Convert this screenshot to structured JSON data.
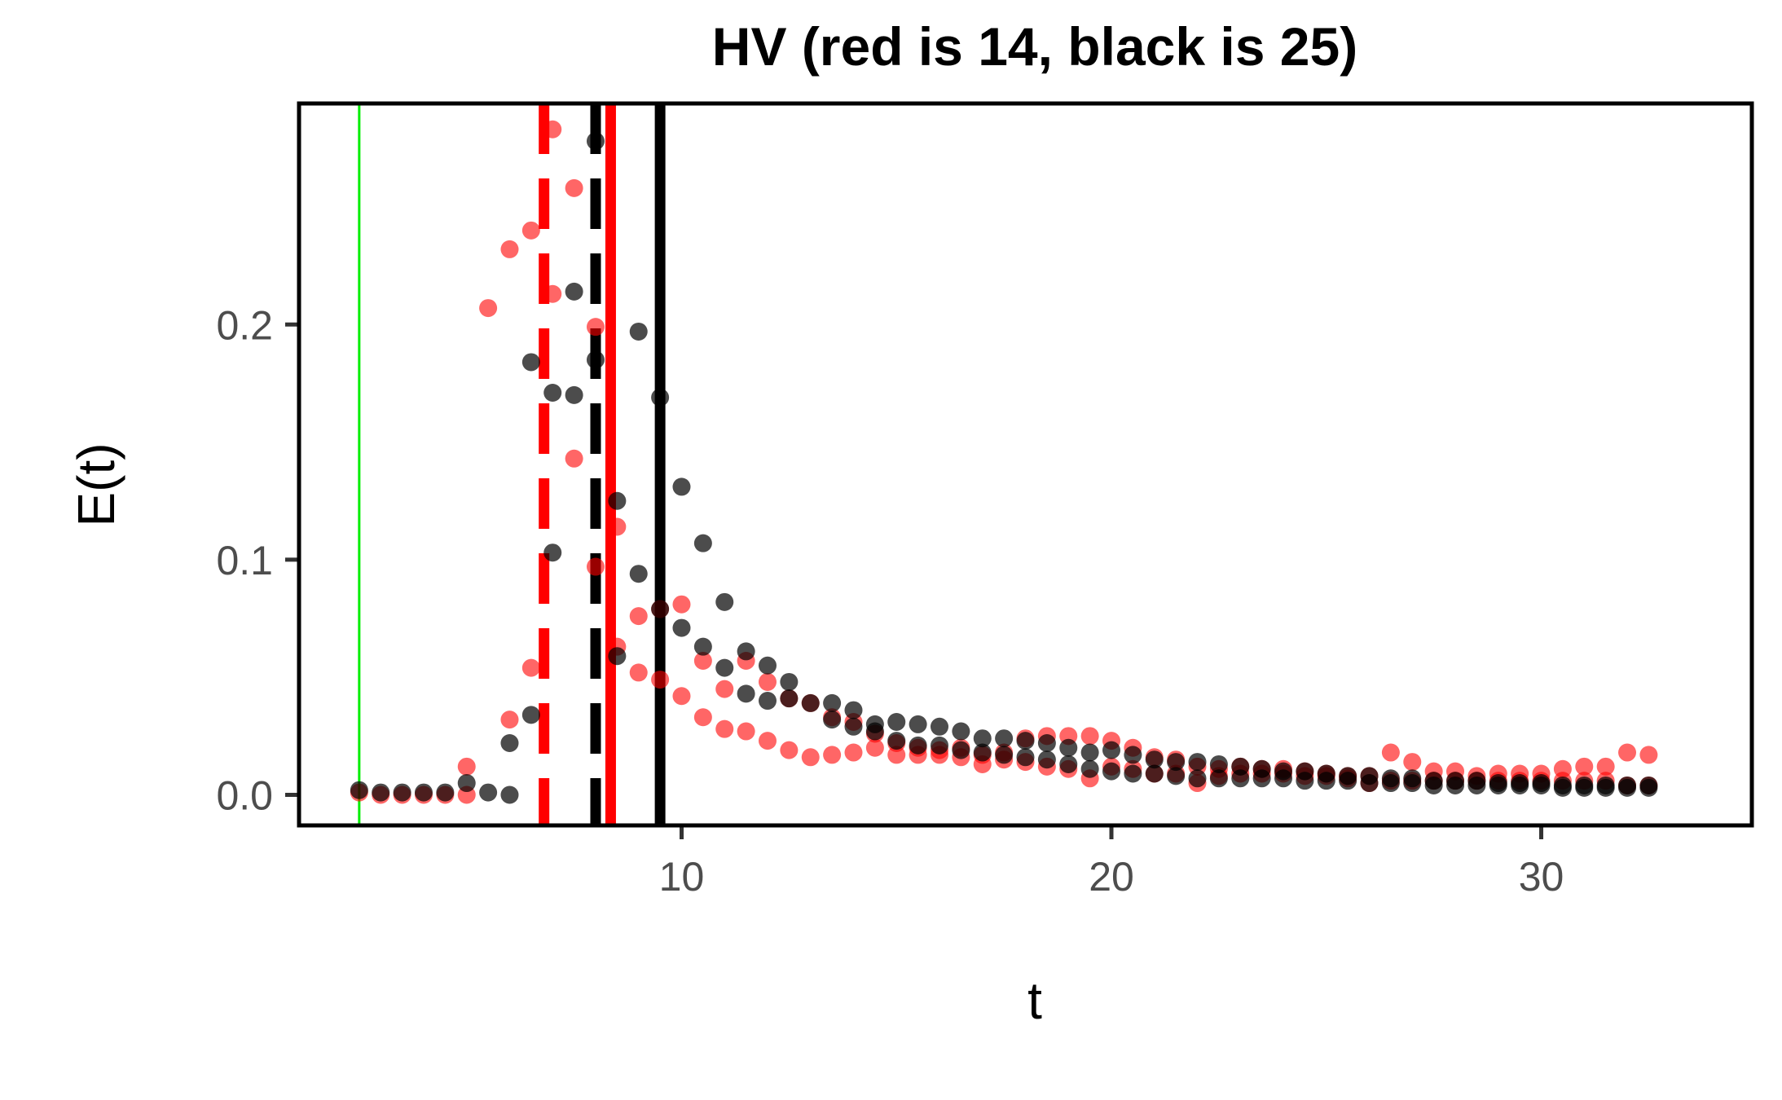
{
  "chart_data": {
    "type": "scatter",
    "title": "HV (red is 14, black is 25)",
    "xlabel": "t",
    "ylabel": "E(t)",
    "xlim": [
      1.1,
      34.9
    ],
    "ylim": [
      -0.013,
      0.294
    ],
    "xticks": [
      10,
      20,
      30
    ],
    "yticks": [
      0.0,
      0.1,
      0.2
    ],
    "ytick_labels": [
      "0.0",
      "0.1",
      "0.2"
    ],
    "grid": false,
    "legend": "none",
    "colors": {
      "red": "#ff0000",
      "black": "#000000",
      "green": "#00ee00"
    },
    "vlines": [
      {
        "x": 2.5,
        "color": "#00ee00",
        "style": "solid",
        "width": "thin"
      },
      {
        "x": 6.8,
        "color": "#ff0000",
        "style": "dashed"
      },
      {
        "x": 8.0,
        "color": "#000000",
        "style": "dashed"
      },
      {
        "x": 8.35,
        "color": "#ff0000",
        "style": "solid"
      },
      {
        "x": 9.5,
        "color": "#000000",
        "style": "solid"
      }
    ],
    "series": [
      {
        "color": "#ff0000",
        "opacity": 0.6,
        "points": [
          [
            2.5,
            0.001
          ],
          [
            3.0,
            0.0
          ],
          [
            3.5,
            0.0
          ],
          [
            4.0,
            0.0
          ],
          [
            4.5,
            0.0
          ],
          [
            5.0,
            0.0
          ],
          [
            5.0,
            0.012
          ],
          [
            5.5,
            0.207
          ],
          [
            6.0,
            0.032
          ],
          [
            6.0,
            0.232
          ],
          [
            6.5,
            0.24
          ],
          [
            6.5,
            0.054
          ],
          [
            7.0,
            0.283
          ],
          [
            7.0,
            0.213
          ],
          [
            7.5,
            0.258
          ],
          [
            7.5,
            0.143
          ],
          [
            8.0,
            0.199
          ],
          [
            8.0,
            0.097
          ],
          [
            8.5,
            0.114
          ],
          [
            8.5,
            0.063
          ],
          [
            9.0,
            0.076
          ],
          [
            9.0,
            0.052
          ],
          [
            9.5,
            0.079
          ],
          [
            9.5,
            0.049
          ],
          [
            10.0,
            0.081
          ],
          [
            10.0,
            0.042
          ],
          [
            10.5,
            0.057
          ],
          [
            10.5,
            0.033
          ],
          [
            11.0,
            0.045
          ],
          [
            11.0,
            0.028
          ],
          [
            11.5,
            0.057
          ],
          [
            11.5,
            0.027
          ],
          [
            12.0,
            0.048
          ],
          [
            12.0,
            0.023
          ],
          [
            12.5,
            0.041
          ],
          [
            12.5,
            0.019
          ],
          [
            13.0,
            0.039
          ],
          [
            13.0,
            0.016
          ],
          [
            13.5,
            0.033
          ],
          [
            13.5,
            0.017
          ],
          [
            14.0,
            0.031
          ],
          [
            14.0,
            0.018
          ],
          [
            14.5,
            0.026
          ],
          [
            14.5,
            0.02
          ],
          [
            15.0,
            0.022
          ],
          [
            15.0,
            0.017
          ],
          [
            15.5,
            0.02
          ],
          [
            15.5,
            0.017
          ],
          [
            16.0,
            0.019
          ],
          [
            16.0,
            0.017
          ],
          [
            16.5,
            0.02
          ],
          [
            16.5,
            0.016
          ],
          [
            17.0,
            0.017
          ],
          [
            17.0,
            0.013
          ],
          [
            17.5,
            0.018
          ],
          [
            17.5,
            0.015
          ],
          [
            18.0,
            0.024
          ],
          [
            18.0,
            0.014
          ],
          [
            18.5,
            0.025
          ],
          [
            18.5,
            0.012
          ],
          [
            19.0,
            0.025
          ],
          [
            19.0,
            0.011
          ],
          [
            19.5,
            0.025
          ],
          [
            19.5,
            0.007
          ],
          [
            20.0,
            0.023
          ],
          [
            20.0,
            0.012
          ],
          [
            20.5,
            0.02
          ],
          [
            20.5,
            0.011
          ],
          [
            21.0,
            0.016
          ],
          [
            21.0,
            0.009
          ],
          [
            21.5,
            0.015
          ],
          [
            21.5,
            0.009
          ],
          [
            22.0,
            0.012
          ],
          [
            22.0,
            0.005
          ],
          [
            22.5,
            0.011
          ],
          [
            22.5,
            0.008
          ],
          [
            23.0,
            0.012
          ],
          [
            23.0,
            0.009
          ],
          [
            23.5,
            0.011
          ],
          [
            23.5,
            0.009
          ],
          [
            24.0,
            0.011
          ],
          [
            24.0,
            0.009
          ],
          [
            24.5,
            0.01
          ],
          [
            24.5,
            0.008
          ],
          [
            25.0,
            0.009
          ],
          [
            25.0,
            0.008
          ],
          [
            25.5,
            0.008
          ],
          [
            25.5,
            0.007
          ],
          [
            26.0,
            0.008
          ],
          [
            26.0,
            0.005
          ],
          [
            26.5,
            0.018
          ],
          [
            26.5,
            0.006
          ],
          [
            27.0,
            0.014
          ],
          [
            27.0,
            0.006
          ],
          [
            27.5,
            0.01
          ],
          [
            27.5,
            0.006
          ],
          [
            28.0,
            0.01
          ],
          [
            28.0,
            0.006
          ],
          [
            28.5,
            0.008
          ],
          [
            28.5,
            0.006
          ],
          [
            29.0,
            0.009
          ],
          [
            29.0,
            0.006
          ],
          [
            29.5,
            0.009
          ],
          [
            29.5,
            0.006
          ],
          [
            30.0,
            0.009
          ],
          [
            30.0,
            0.006
          ],
          [
            30.5,
            0.011
          ],
          [
            30.5,
            0.006
          ],
          [
            31.0,
            0.012
          ],
          [
            31.0,
            0.006
          ],
          [
            31.5,
            0.012
          ],
          [
            31.5,
            0.006
          ],
          [
            32.0,
            0.018
          ],
          [
            32.0,
            0.004
          ],
          [
            32.5,
            0.017
          ],
          [
            32.5,
            0.004
          ]
        ]
      },
      {
        "color": "#000000",
        "opacity": 0.7,
        "points": [
          [
            2.5,
            0.002
          ],
          [
            3.0,
            0.001
          ],
          [
            3.5,
            0.001
          ],
          [
            4.0,
            0.001
          ],
          [
            4.5,
            0.001
          ],
          [
            5.0,
            0.005
          ],
          [
            5.5,
            0.001
          ],
          [
            6.0,
            0.022
          ],
          [
            6.0,
            0.0
          ],
          [
            6.5,
            0.184
          ],
          [
            6.5,
            0.034
          ],
          [
            7.0,
            0.171
          ],
          [
            7.0,
            0.103
          ],
          [
            7.5,
            0.214
          ],
          [
            7.5,
            0.17
          ],
          [
            8.0,
            0.278
          ],
          [
            8.0,
            0.185
          ],
          [
            8.5,
            0.125
          ],
          [
            8.5,
            0.059
          ],
          [
            9.0,
            0.197
          ],
          [
            9.0,
            0.094
          ],
          [
            9.5,
            0.169
          ],
          [
            9.5,
            0.079
          ],
          [
            10.0,
            0.131
          ],
          [
            10.0,
            0.071
          ],
          [
            10.5,
            0.107
          ],
          [
            10.5,
            0.063
          ],
          [
            11.0,
            0.082
          ],
          [
            11.0,
            0.054
          ],
          [
            11.5,
            0.061
          ],
          [
            11.5,
            0.043
          ],
          [
            12.0,
            0.055
          ],
          [
            12.0,
            0.04
          ],
          [
            12.5,
            0.048
          ],
          [
            12.5,
            0.041
          ],
          [
            13.0,
            0.039
          ],
          [
            13.5,
            0.039
          ],
          [
            13.5,
            0.032
          ],
          [
            14.0,
            0.036
          ],
          [
            14.0,
            0.029
          ],
          [
            14.5,
            0.03
          ],
          [
            14.5,
            0.027
          ],
          [
            15.0,
            0.031
          ],
          [
            15.0,
            0.023
          ],
          [
            15.5,
            0.03
          ],
          [
            15.5,
            0.021
          ],
          [
            16.0,
            0.029
          ],
          [
            16.0,
            0.021
          ],
          [
            16.5,
            0.027
          ],
          [
            16.5,
            0.019
          ],
          [
            17.0,
            0.024
          ],
          [
            17.0,
            0.018
          ],
          [
            17.5,
            0.024
          ],
          [
            17.5,
            0.017
          ],
          [
            18.0,
            0.023
          ],
          [
            18.0,
            0.016
          ],
          [
            18.5,
            0.022
          ],
          [
            18.5,
            0.015
          ],
          [
            19.0,
            0.02
          ],
          [
            19.0,
            0.013
          ],
          [
            19.5,
            0.018
          ],
          [
            19.5,
            0.011
          ],
          [
            20.0,
            0.019
          ],
          [
            20.0,
            0.01
          ],
          [
            20.5,
            0.017
          ],
          [
            20.5,
            0.009
          ],
          [
            21.0,
            0.015
          ],
          [
            21.0,
            0.009
          ],
          [
            21.5,
            0.014
          ],
          [
            21.5,
            0.008
          ],
          [
            22.0,
            0.014
          ],
          [
            22.0,
            0.007
          ],
          [
            22.5,
            0.013
          ],
          [
            22.5,
            0.007
          ],
          [
            23.0,
            0.012
          ],
          [
            23.0,
            0.007
          ],
          [
            23.5,
            0.011
          ],
          [
            23.5,
            0.007
          ],
          [
            24.0,
            0.01
          ],
          [
            24.0,
            0.007
          ],
          [
            24.5,
            0.01
          ],
          [
            24.5,
            0.006
          ],
          [
            25.0,
            0.009
          ],
          [
            25.0,
            0.006
          ],
          [
            25.5,
            0.008
          ],
          [
            25.5,
            0.006
          ],
          [
            26.0,
            0.008
          ],
          [
            26.0,
            0.005
          ],
          [
            26.5,
            0.007
          ],
          [
            26.5,
            0.005
          ],
          [
            27.0,
            0.007
          ],
          [
            27.0,
            0.005
          ],
          [
            27.5,
            0.006
          ],
          [
            27.5,
            0.004
          ],
          [
            28.0,
            0.006
          ],
          [
            28.0,
            0.004
          ],
          [
            28.5,
            0.006
          ],
          [
            28.5,
            0.004
          ],
          [
            29.0,
            0.005
          ],
          [
            29.0,
            0.004
          ],
          [
            29.5,
            0.005
          ],
          [
            29.5,
            0.004
          ],
          [
            30.0,
            0.005
          ],
          [
            30.0,
            0.004
          ],
          [
            30.5,
            0.004
          ],
          [
            30.5,
            0.003
          ],
          [
            31.0,
            0.004
          ],
          [
            31.0,
            0.003
          ],
          [
            31.5,
            0.004
          ],
          [
            31.5,
            0.003
          ],
          [
            32.0,
            0.004
          ],
          [
            32.0,
            0.003
          ],
          [
            32.5,
            0.004
          ],
          [
            32.5,
            0.003
          ]
        ]
      }
    ]
  }
}
